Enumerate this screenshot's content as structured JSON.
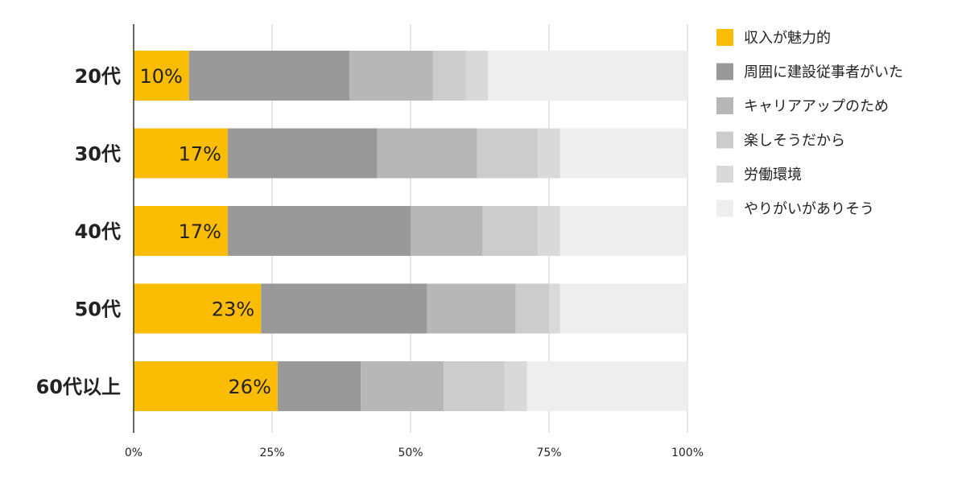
{
  "chart_data": {
    "type": "bar",
    "orientation": "horizontal",
    "stacked": "percent",
    "categories": [
      "20代",
      "30代",
      "40代",
      "50代",
      "60代以上"
    ],
    "series": [
      {
        "name": "収入が魅力的",
        "color": "#fbbc04",
        "values": [
          10,
          17,
          17,
          23,
          26
        ],
        "data_labels": [
          "10%",
          "17%",
          "17%",
          "23%",
          "26%"
        ]
      },
      {
        "name": "周囲に建設従事者がいた",
        "color": "#999999",
        "values": [
          29,
          27,
          33,
          30,
          15
        ]
      },
      {
        "name": "キャリアアップのため",
        "color": "#b7b7b7",
        "values": [
          15,
          18,
          13,
          16,
          15
        ]
      },
      {
        "name": "楽しそうだから",
        "color": "#cccccc",
        "values": [
          6,
          11,
          10,
          6,
          11
        ]
      },
      {
        "name": "労働環境",
        "color": "#d9d9d9",
        "values": [
          4,
          4,
          4,
          2,
          4
        ]
      },
      {
        "name": "やりがいがありそう",
        "color": "#eeeeee",
        "values": [
          36,
          23,
          23,
          23,
          29
        ]
      }
    ],
    "x_ticks": [
      "0%",
      "25%",
      "50%",
      "75%",
      "100%"
    ],
    "xlim": [
      0,
      100
    ],
    "grid": "vertical",
    "legend_position": "right"
  }
}
